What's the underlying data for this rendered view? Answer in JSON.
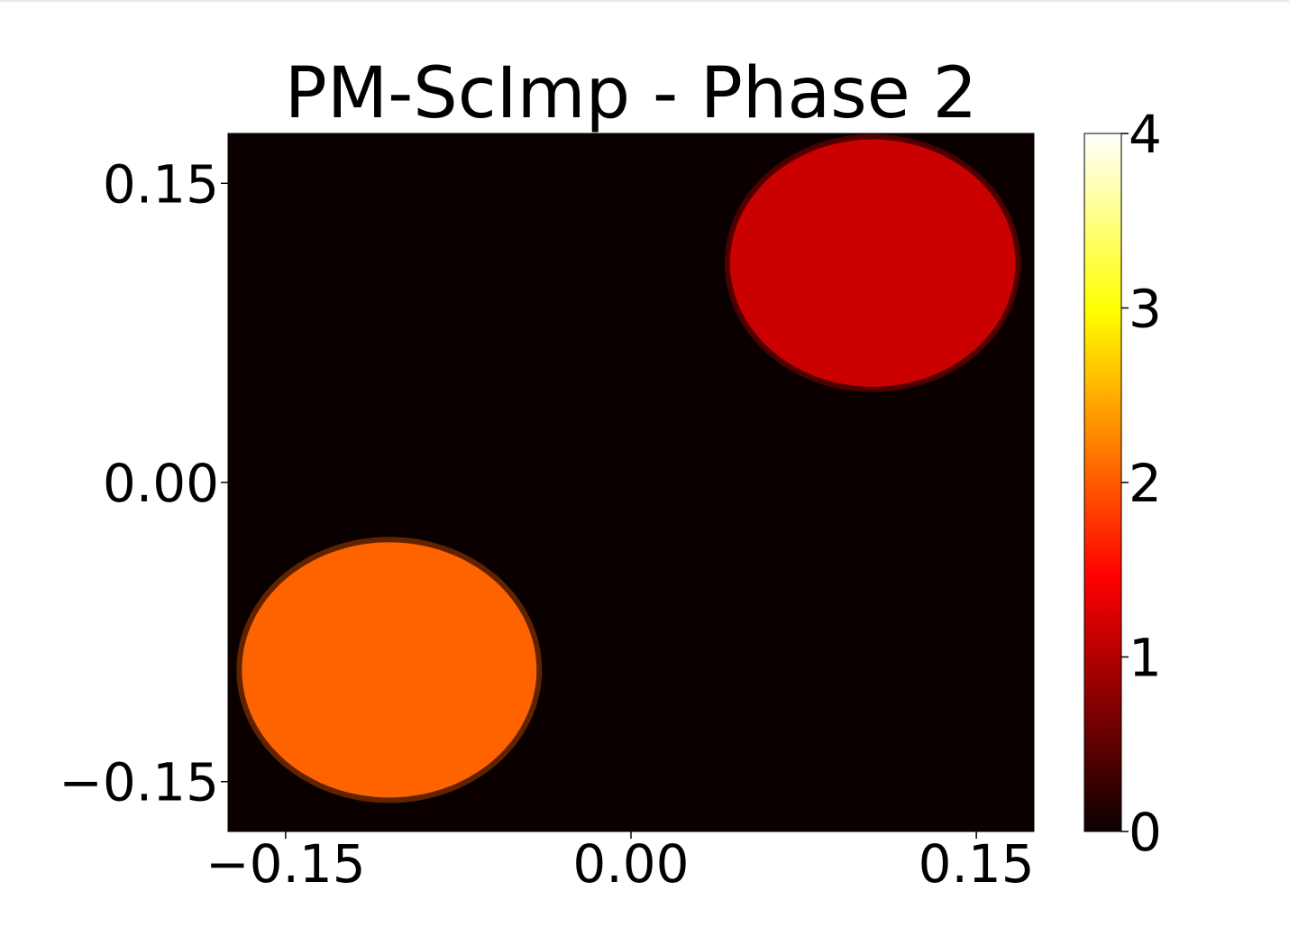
{
  "chart_data": {
    "type": "heatmap",
    "title": "PM-ScImp - Phase 2",
    "xlabel": "",
    "ylabel": "",
    "xlim": [
      -0.175,
      0.175
    ],
    "ylim": [
      -0.175,
      0.175
    ],
    "x_ticks": [
      {
        "value": -0.15,
        "label": "−0.15"
      },
      {
        "value": 0.0,
        "label": "0.00"
      },
      {
        "value": 0.15,
        "label": "0.15"
      }
    ],
    "y_ticks": [
      {
        "value": 0.15,
        "label": "0.15"
      },
      {
        "value": 0.0,
        "label": "0.00"
      },
      {
        "value": -0.15,
        "label": "−0.15"
      }
    ],
    "colorbar": {
      "colormap": "hot",
      "range": [
        0,
        4
      ],
      "ticks": [
        {
          "value": 0,
          "label": "0"
        },
        {
          "value": 1,
          "label": "1"
        },
        {
          "value": 2,
          "label": "2"
        },
        {
          "value": 3,
          "label": "3"
        },
        {
          "value": 4,
          "label": "4"
        }
      ]
    },
    "grid": false,
    "background_value": 0,
    "regions": [
      {
        "shape": "disk",
        "center": [
          0.105,
          0.11
        ],
        "radius": 0.062,
        "value": 1.15
      },
      {
        "shape": "disk",
        "center": [
          -0.105,
          -0.094
        ],
        "radius": 0.064,
        "value": 2.05
      }
    ]
  }
}
